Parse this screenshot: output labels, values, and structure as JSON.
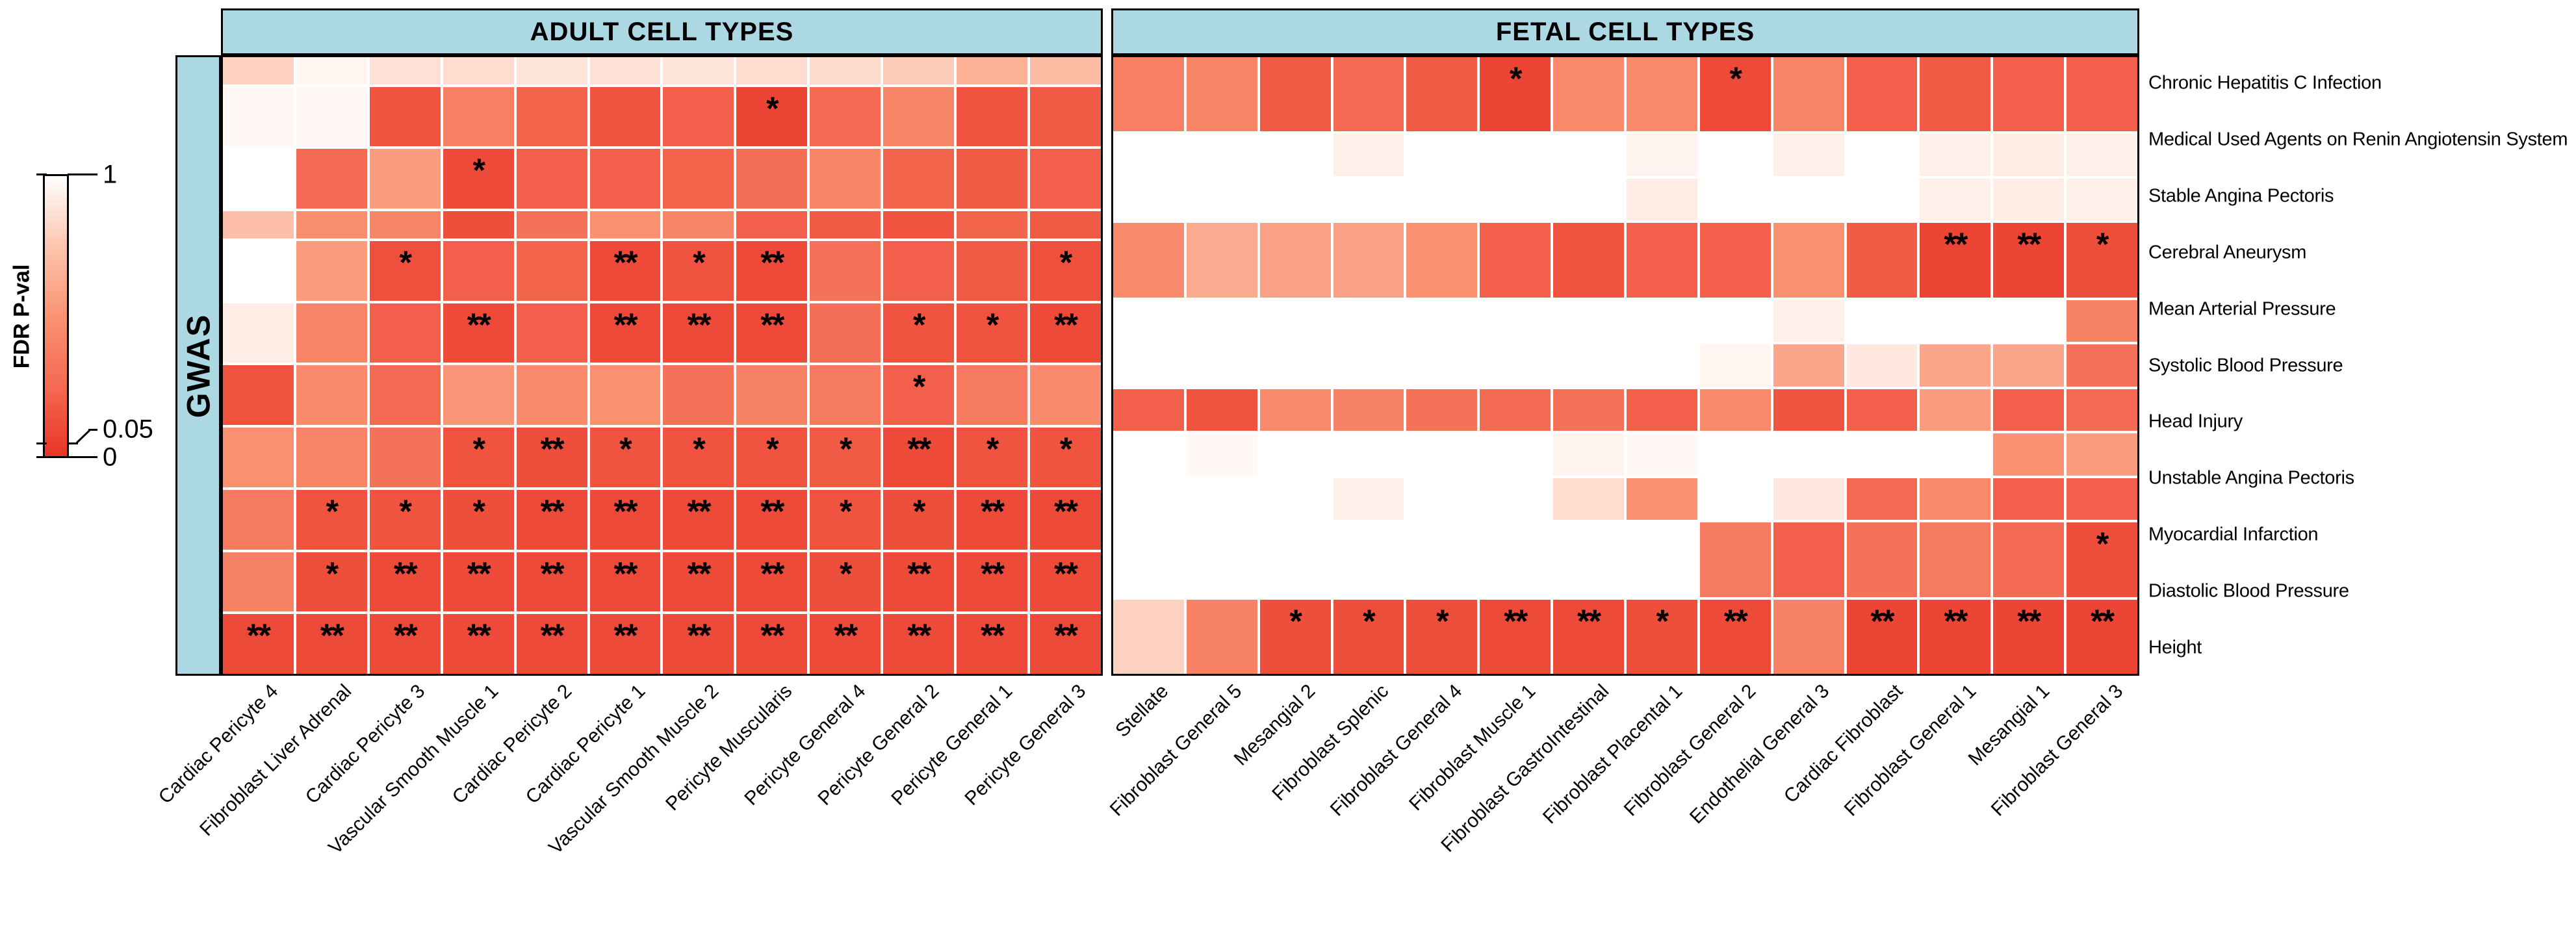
{
  "legend": {
    "title": "FDR P-val",
    "tick_top": "1",
    "tick_mid": "0.05",
    "tick_bottom": "0"
  },
  "gwas_label": "GWAS",
  "colors": {
    "header_bg": "#acd8e3",
    "panel_border": "#000000",
    "significant_red": "#e93428",
    "mid_salmon": "#fa9272",
    "light_pink": "#fdc5af",
    "nonsignificant_white": "#ffffff"
  },
  "chart_data": {
    "type": "heatmap",
    "value_label": "FDR P-val",
    "value_range": [
      0,
      1
    ],
    "legend_ticks": [
      1,
      0.05,
      0
    ],
    "colormap_stops": [
      [
        0,
        "#e93428"
      ],
      [
        0.25,
        "#f46a52"
      ],
      [
        0.5,
        "#fa9272"
      ],
      [
        0.75,
        "#fdc5af"
      ],
      [
        1,
        "#ffffff"
      ]
    ],
    "rows": [
      "Chronic Hepatitis C Infection",
      "Medical Used Agents on Renin Angiotensin System",
      "Stable Angina Pectoris",
      "Cerebral Aneurysm",
      "Mean Arterial Pressure",
      "Systolic Blood Pressure",
      "Head Injury",
      "Unstable Angina Pectoris",
      "Myocardial Infarction",
      "Diastolic Blood Pressure",
      "Height"
    ],
    "panels": {
      "adult": {
        "header": "ADULT CELL TYPES",
        "columns": [
          "Cardiac Pericyte 4",
          "Fibroblast Liver Adrenal",
          "Cardiac Pericyte 3",
          "Vascular Smooth Muscle 1",
          "Cardiac Pericyte 2",
          "Cardiac Pericyte 1",
          "Vascular Smooth Muscle 2",
          "Pericyte Muscularis",
          "Pericyte General 4",
          "Pericyte General 2",
          "Pericyte General 1",
          "Pericyte General 3"
        ],
        "values": [
          [
            0.8,
            0.96,
            0.87,
            0.85,
            0.88,
            0.87,
            0.88,
            0.85,
            0.84,
            0.78,
            0.65,
            0.7
          ],
          [
            0.97,
            0.97,
            0.15,
            0.38,
            0.22,
            0.15,
            0.2,
            0.08,
            0.25,
            0.42,
            0.15,
            0.18
          ],
          [
            1.0,
            0.25,
            0.55,
            0.1,
            0.2,
            0.2,
            0.22,
            0.28,
            0.42,
            0.22,
            0.18,
            0.2
          ],
          [
            0.72,
            0.48,
            0.42,
            0.12,
            0.3,
            0.5,
            0.42,
            0.2,
            0.18,
            0.15,
            0.22,
            0.18
          ],
          [
            1.0,
            0.55,
            0.13,
            0.2,
            0.22,
            0.1,
            0.15,
            0.1,
            0.3,
            0.2,
            0.18,
            0.13
          ],
          [
            0.92,
            0.42,
            0.2,
            0.1,
            0.2,
            0.1,
            0.1,
            0.1,
            0.28,
            0.15,
            0.15,
            0.1
          ],
          [
            0.15,
            0.45,
            0.25,
            0.52,
            0.45,
            0.5,
            0.3,
            0.4,
            0.35,
            0.2,
            0.35,
            0.45
          ],
          [
            0.5,
            0.42,
            0.3,
            0.15,
            0.12,
            0.15,
            0.15,
            0.15,
            0.18,
            0.1,
            0.15,
            0.15
          ],
          [
            0.35,
            0.15,
            0.15,
            0.12,
            0.1,
            0.1,
            0.1,
            0.1,
            0.15,
            0.12,
            0.1,
            0.1
          ],
          [
            0.4,
            0.12,
            0.1,
            0.1,
            0.1,
            0.1,
            0.1,
            0.1,
            0.12,
            0.1,
            0.1,
            0.1
          ],
          [
            0.1,
            0.1,
            0.1,
            0.1,
            0.1,
            0.1,
            0.1,
            0.1,
            0.1,
            0.1,
            0.1,
            0.1
          ]
        ],
        "stars": [
          [
            "",
            "",
            "",
            "",
            "",
            "",
            "",
            "",
            "",
            "",
            "",
            ""
          ],
          [
            "",
            "",
            "",
            "",
            "",
            "",
            "",
            "*",
            "",
            "",
            "",
            ""
          ],
          [
            "",
            "",
            "",
            "*",
            "",
            "",
            "",
            "",
            "",
            "",
            "",
            ""
          ],
          [
            "",
            "",
            "",
            "",
            "",
            "",
            "",
            "",
            "",
            "",
            "",
            ""
          ],
          [
            "",
            "",
            "*",
            "",
            "",
            "**",
            "*",
            "**",
            "",
            "",
            "",
            "*"
          ],
          [
            "",
            "",
            "",
            "**",
            "",
            "**",
            "**",
            "**",
            "",
            "*",
            "*",
            "**"
          ],
          [
            "",
            "",
            "",
            "",
            "",
            "",
            "",
            "",
            "",
            "*",
            "",
            ""
          ],
          [
            "",
            "",
            "",
            "*",
            "**",
            "*",
            "*",
            "*",
            "*",
            "**",
            "*",
            "*"
          ],
          [
            "",
            "*",
            "*",
            "*",
            "**",
            "**",
            "**",
            "**",
            "*",
            "*",
            "**",
            "**"
          ],
          [
            "",
            "*",
            "**",
            "**",
            "**",
            "**",
            "**",
            "**",
            "*",
            "**",
            "**",
            "**"
          ],
          [
            "**",
            "**",
            "**",
            "**",
            "**",
            "**",
            "**",
            "**",
            "**",
            "**",
            "**",
            "**"
          ]
        ]
      },
      "fetal": {
        "header": "FETAL CELL TYPES",
        "columns": [
          "Stellate",
          "Fibroblast General 5",
          "Mesangial 2",
          "Fibroblast Splenic",
          "Fibroblast General 4",
          "Fibroblast Muscle 1",
          "Fibroblast GastroIntestinal",
          "Fibroblast Placental 1",
          "Fibroblast General 2",
          "Endothelial General 3",
          "Cardiac Fibroblast",
          "Fibroblast General 1",
          "Mesangial 1",
          "Fibroblast General 3"
        ],
        "values": [
          [
            0.38,
            0.42,
            0.18,
            0.25,
            0.18,
            0.08,
            0.45,
            0.45,
            0.1,
            0.42,
            0.2,
            0.18,
            0.2,
            0.2
          ],
          [
            1,
            1,
            1,
            0.93,
            1,
            1,
            1,
            0.95,
            1,
            0.93,
            1,
            0.93,
            0.92,
            0.93
          ],
          [
            1,
            1,
            1,
            1,
            1,
            1,
            1,
            0.92,
            1,
            1,
            1,
            0.93,
            0.92,
            0.93
          ],
          [
            0.45,
            0.62,
            0.58,
            0.58,
            0.5,
            0.2,
            0.15,
            0.2,
            0.2,
            0.5,
            0.18,
            0.08,
            0.08,
            0.12
          ],
          [
            1,
            1,
            1,
            1,
            1,
            1,
            1,
            1,
            1,
            0.93,
            1,
            1,
            1,
            0.4
          ],
          [
            1,
            1,
            1,
            1,
            1,
            1,
            1,
            1,
            0.96,
            0.6,
            0.9,
            0.6,
            0.6,
            0.3
          ],
          [
            0.2,
            0.15,
            0.45,
            0.4,
            0.3,
            0.25,
            0.3,
            0.2,
            0.45,
            0.15,
            0.2,
            0.55,
            0.2,
            0.25
          ],
          [
            1,
            0.97,
            1,
            1,
            1,
            1,
            0.95,
            0.97,
            1,
            1,
            1,
            1,
            0.5,
            0.55
          ],
          [
            1,
            1,
            1,
            0.93,
            1,
            1,
            0.85,
            0.5,
            1,
            0.9,
            0.25,
            0.45,
            0.2,
            0.2
          ],
          [
            1,
            1,
            1,
            1,
            1,
            1,
            1,
            1,
            0.35,
            0.2,
            0.3,
            0.35,
            0.25,
            0.12
          ],
          [
            0.8,
            0.4,
            0.12,
            0.12,
            0.12,
            0.1,
            0.1,
            0.12,
            0.1,
            0.4,
            0.08,
            0.08,
            0.08,
            0.08
          ]
        ],
        "stars": [
          [
            "",
            "",
            "",
            "",
            "",
            "*",
            "",
            "",
            "*",
            "",
            "",
            "",
            "",
            ""
          ],
          [
            "",
            "",
            "",
            "",
            "",
            "",
            "",
            "",
            "",
            "",
            "",
            "",
            "",
            ""
          ],
          [
            "",
            "",
            "",
            "",
            "",
            "",
            "",
            "",
            "",
            "",
            "",
            "",
            "",
            ""
          ],
          [
            "",
            "",
            "",
            "",
            "",
            "",
            "",
            "",
            "",
            "",
            "",
            "**",
            "**",
            "*"
          ],
          [
            "",
            "",
            "",
            "",
            "",
            "",
            "",
            "",
            "",
            "",
            "",
            "",
            "",
            ""
          ],
          [
            "",
            "",
            "",
            "",
            "",
            "",
            "",
            "",
            "",
            "",
            "",
            "",
            "",
            ""
          ],
          [
            "",
            "",
            "",
            "",
            "",
            "",
            "",
            "",
            "",
            "",
            "",
            "",
            "",
            ""
          ],
          [
            "",
            "",
            "",
            "",
            "",
            "",
            "",
            "",
            "",
            "",
            "",
            "",
            "",
            ""
          ],
          [
            "",
            "",
            "",
            "",
            "",
            "",
            "",
            "",
            "",
            "",
            "",
            "",
            "",
            ""
          ],
          [
            "",
            "",
            "",
            "",
            "",
            "",
            "",
            "",
            "",
            "",
            "",
            "",
            "",
            "*"
          ],
          [
            "",
            "",
            "*",
            "*",
            "*",
            "**",
            "**",
            "*",
            "**",
            "",
            "**",
            "**",
            "**",
            "**"
          ]
        ]
      }
    }
  }
}
